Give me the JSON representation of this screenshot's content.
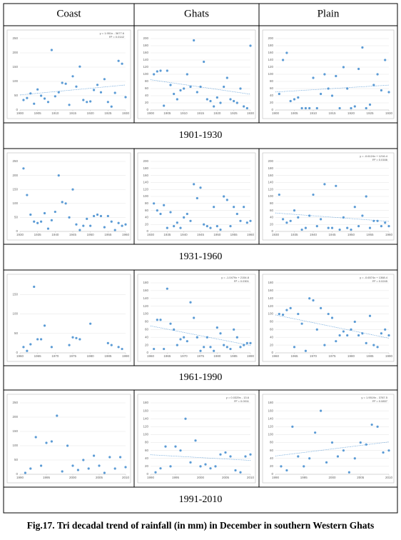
{
  "columns": [
    "Coast",
    "Ghats",
    "Plain"
  ],
  "periods": [
    "1901-1930",
    "1931-1960",
    "1961-1990",
    "1991-2010"
  ],
  "caption": "Fig.17. Tri decadal trend of rainfall (in mm) in December in southern Western Ghats",
  "chart_data": [
    {
      "type": "scatter",
      "color": "#5b9bd5",
      "trendline": true,
      "grid": true,
      "annotations": [
        "y = 1.951x - 3677.6",
        "R² = 0.0142"
      ],
      "x": [
        1901,
        1902,
        1903,
        1904,
        1905,
        1906,
        1907,
        1908,
        1909,
        1910,
        1911,
        1912,
        1913,
        1914,
        1915,
        1916,
        1917,
        1918,
        1919,
        1920,
        1921,
        1922,
        1923,
        1924,
        1925,
        1926,
        1927,
        1928,
        1929,
        1930
      ],
      "values": [
        35,
        42,
        58,
        22,
        72,
        50,
        40,
        28,
        210,
        48,
        62,
        95,
        92,
        18,
        118,
        82,
        152,
        35,
        28,
        30,
        70,
        88,
        62,
        108,
        28,
        12,
        60,
        172,
        162,
        45
      ],
      "xlim": [
        1900,
        1930
      ],
      "xticks": [
        1900,
        1905,
        1910,
        1915,
        1920,
        1925,
        1930
      ],
      "ylim": [
        0,
        250
      ],
      "yticks": [
        0,
        50,
        100,
        150,
        200,
        250
      ]
    },
    {
      "type": "scatter",
      "color": "#5b9bd5",
      "trendline": true,
      "grid": true,
      "x": [
        1901,
        1902,
        1903,
        1904,
        1905,
        1906,
        1907,
        1908,
        1909,
        1910,
        1911,
        1912,
        1913,
        1914,
        1915,
        1916,
        1917,
        1918,
        1919,
        1920,
        1921,
        1922,
        1923,
        1924,
        1925,
        1926,
        1927,
        1928,
        1929,
        1930
      ],
      "values": [
        100,
        108,
        110,
        12,
        110,
        70,
        45,
        30,
        55,
        60,
        100,
        65,
        195,
        50,
        65,
        135,
        30,
        25,
        10,
        35,
        20,
        65,
        90,
        30,
        25,
        20,
        60,
        10,
        5,
        180
      ],
      "xlim": [
        1900,
        1930
      ],
      "xticks": [
        1900,
        1905,
        1910,
        1915,
        1920,
        1925,
        1930
      ],
      "ylim": [
        0,
        200
      ],
      "yticks": [
        0,
        20,
        40,
        60,
        80,
        100,
        120,
        140,
        160,
        180,
        200
      ]
    },
    {
      "type": "scatter",
      "color": "#5b9bd5",
      "trendline": true,
      "grid": true,
      "x": [
        1901,
        1902,
        1903,
        1904,
        1905,
        1906,
        1907,
        1908,
        1909,
        1910,
        1911,
        1912,
        1913,
        1914,
        1915,
        1916,
        1917,
        1918,
        1919,
        1920,
        1921,
        1922,
        1923,
        1924,
        1925,
        1926,
        1927,
        1928,
        1929,
        1930
      ],
      "values": [
        45,
        140,
        160,
        25,
        30,
        35,
        5,
        5,
        5,
        90,
        5,
        45,
        100,
        60,
        40,
        95,
        5,
        120,
        60,
        5,
        10,
        115,
        175,
        5,
        15,
        70,
        100,
        55,
        140,
        50
      ],
      "xlim": [
        1900,
        1930
      ],
      "xticks": [
        1900,
        1905,
        1910,
        1915,
        1920,
        1925,
        1930
      ],
      "ylim": [
        0,
        200
      ],
      "yticks": [
        0,
        20,
        40,
        60,
        80,
        100,
        120,
        140,
        160,
        180,
        200
      ]
    },
    {
      "type": "scatter",
      "color": "#5b9bd5",
      "trendline": false,
      "grid": true,
      "x": [
        1931,
        1932,
        1933,
        1934,
        1935,
        1936,
        1937,
        1938,
        1939,
        1940,
        1941,
        1942,
        1943,
        1944,
        1945,
        1946,
        1947,
        1948,
        1949,
        1950,
        1951,
        1952,
        1953,
        1954,
        1955,
        1956,
        1957,
        1958,
        1959,
        1960
      ],
      "values": [
        225,
        130,
        60,
        35,
        30,
        35,
        65,
        10,
        40,
        70,
        200,
        105,
        100,
        50,
        150,
        25,
        5,
        20,
        45,
        20,
        55,
        60,
        55,
        15,
        55,
        35,
        5,
        30,
        20,
        25
      ],
      "xlim": [
        1930,
        1960
      ],
      "xticks": [
        1930,
        1935,
        1940,
        1945,
        1950,
        1955,
        1960
      ],
      "ylim": [
        0,
        250
      ],
      "yticks": [
        0,
        50,
        100,
        150,
        200,
        250
      ]
    },
    {
      "type": "scatter",
      "color": "#5b9bd5",
      "trendline": false,
      "grid": true,
      "x": [
        1931,
        1932,
        1933,
        1934,
        1935,
        1936,
        1937,
        1938,
        1939,
        1940,
        1941,
        1942,
        1943,
        1944,
        1945,
        1946,
        1947,
        1948,
        1949,
        1950,
        1951,
        1952,
        1953,
        1954,
        1955,
        1956,
        1957,
        1958,
        1959,
        1960
      ],
      "values": [
        80,
        60,
        50,
        75,
        10,
        55,
        15,
        25,
        10,
        40,
        50,
        30,
        135,
        95,
        125,
        20,
        15,
        10,
        70,
        15,
        5,
        100,
        90,
        15,
        70,
        50,
        30,
        70,
        25,
        30
      ],
      "xlim": [
        1930,
        1960
      ],
      "xticks": [
        1930,
        1935,
        1940,
        1945,
        1950,
        1955,
        1960
      ],
      "ylim": [
        0,
        200
      ],
      "yticks": [
        0,
        20,
        40,
        60,
        80,
        100,
        120,
        140,
        160,
        180,
        200
      ]
    },
    {
      "type": "scatter",
      "color": "#5b9bd5",
      "trendline": true,
      "grid": true,
      "annotations": [
        "y = -0.6124x + 1216.4",
        "R² = 0.0166"
      ],
      "x": [
        1931,
        1932,
        1933,
        1934,
        1935,
        1936,
        1937,
        1938,
        1939,
        1940,
        1941,
        1942,
        1943,
        1944,
        1945,
        1946,
        1947,
        1948,
        1949,
        1950,
        1951,
        1952,
        1953,
        1954,
        1955,
        1956,
        1957,
        1958,
        1959,
        1960
      ],
      "values": [
        105,
        35,
        25,
        30,
        60,
        40,
        5,
        10,
        45,
        105,
        15,
        35,
        135,
        10,
        10,
        130,
        5,
        40,
        10,
        5,
        70,
        15,
        45,
        100,
        10,
        30,
        30,
        15,
        25,
        15
      ],
      "xlim": [
        1930,
        1960
      ],
      "xticks": [
        1930,
        1935,
        1940,
        1945,
        1950,
        1955,
        1960
      ],
      "ylim": [
        0,
        200
      ],
      "yticks": [
        0,
        20,
        40,
        60,
        80,
        100,
        120,
        140,
        160,
        180,
        200
      ]
    },
    {
      "type": "scatter",
      "color": "#5b9bd5",
      "trendline": false,
      "grid": true,
      "x": [
        1961,
        1962,
        1963,
        1964,
        1965,
        1966,
        1967,
        1969,
        1974,
        1975,
        1976,
        1977,
        1980,
        1985,
        1986,
        1988,
        1989
      ],
      "values": [
        15,
        5,
        22,
        170,
        35,
        35,
        70,
        15,
        20,
        40,
        38,
        35,
        75,
        25,
        20,
        15,
        10
      ],
      "xlim": [
        1960,
        1990
      ],
      "xticks": [
        1960,
        1965,
        1970,
        1975,
        1980,
        1985,
        1990
      ],
      "ylim": [
        0,
        180
      ],
      "yticks": [
        0,
        50,
        100,
        150
      ]
    },
    {
      "type": "scatter",
      "color": "#5b9bd5",
      "trendline": true,
      "grid": true,
      "annotations": [
        "y = -1.0479x + 2154.8",
        "R² = 0.0301"
      ],
      "x": [
        1961,
        1962,
        1963,
        1964,
        1965,
        1966,
        1967,
        1968,
        1969,
        1970,
        1971,
        1972,
        1973,
        1974,
        1975,
        1976,
        1977,
        1978,
        1979,
        1980,
        1981,
        1982,
        1983,
        1984,
        1985,
        1986,
        1987,
        1988,
        1989,
        1990
      ],
      "values": [
        10,
        85,
        85,
        10,
        165,
        75,
        60,
        20,
        35,
        40,
        30,
        130,
        90,
        40,
        5,
        15,
        40,
        15,
        5,
        65,
        50,
        20,
        15,
        10,
        60,
        40,
        15,
        20,
        25,
        25
      ],
      "xlim": [
        1960,
        1990
      ],
      "xticks": [
        1960,
        1965,
        1970,
        1975,
        1980,
        1985,
        1990
      ],
      "ylim": [
        0,
        180
      ],
      "yticks": [
        0,
        20,
        40,
        60,
        80,
        100,
        120,
        140,
        160,
        180
      ]
    },
    {
      "type": "scatter",
      "color": "#5b9bd5",
      "trendline": true,
      "grid": true,
      "annotations": [
        "y = -0.6574x + 1368.4",
        "R² = 0.0245"
      ],
      "x": [
        1961,
        1962,
        1963,
        1964,
        1965,
        1966,
        1967,
        1968,
        1969,
        1970,
        1971,
        1972,
        1973,
        1974,
        1975,
        1976,
        1977,
        1978,
        1979,
        1980,
        1981,
        1982,
        1983,
        1984,
        1985,
        1986,
        1987,
        1988,
        1989,
        1990
      ],
      "values": [
        100,
        98,
        110,
        115,
        15,
        100,
        75,
        5,
        140,
        135,
        60,
        115,
        20,
        100,
        90,
        30,
        45,
        55,
        45,
        60,
        80,
        45,
        50,
        25,
        95,
        20,
        15,
        50,
        60,
        45
      ],
      "xlim": [
        1960,
        1990
      ],
      "xticks": [
        1960,
        1965,
        1970,
        1975,
        1980,
        1985,
        1990
      ],
      "ylim": [
        0,
        180
      ],
      "yticks": [
        0,
        20,
        40,
        60,
        80,
        100,
        120,
        140,
        160,
        180
      ]
    },
    {
      "type": "scatter",
      "color": "#5b9bd5",
      "trendline": false,
      "grid": true,
      "x": [
        1991,
        1992,
        1993,
        1994,
        1995,
        1996,
        1997,
        1998,
        1999,
        2000,
        2001,
        2002,
        2003,
        2004,
        2005,
        2006,
        2007,
        2008,
        2009,
        2010
      ],
      "values": [
        5,
        20,
        130,
        30,
        110,
        115,
        205,
        10,
        100,
        30,
        15,
        50,
        20,
        65,
        30,
        5,
        60,
        20,
        60,
        25
      ],
      "xlim": [
        1990,
        2010
      ],
      "xticks": [
        1990,
        1995,
        2000,
        2005,
        2010
      ],
      "ylim": [
        0,
        250
      ],
      "yticks": [
        0,
        50,
        100,
        150,
        200,
        250
      ]
    },
    {
      "type": "scatter",
      "color": "#5b9bd5",
      "trendline": true,
      "grid": true,
      "annotations": [
        "y = 0.0329x - 13.6",
        "R² = 0.0011"
      ],
      "x": [
        1991,
        1992,
        1993,
        1994,
        1995,
        1996,
        1997,
        1998,
        1999,
        2000,
        2001,
        2002,
        2003,
        2004,
        2005,
        2006,
        2007,
        2008,
        2009,
        2010
      ],
      "values": [
        5,
        15,
        70,
        20,
        70,
        60,
        140,
        30,
        85,
        20,
        25,
        15,
        20,
        50,
        55,
        45,
        10,
        5,
        45,
        50
      ],
      "xlim": [
        1990,
        2010
      ],
      "xticks": [
        1990,
        1995,
        2000,
        2005,
        2010
      ],
      "ylim": [
        0,
        180
      ],
      "yticks": [
        0,
        20,
        40,
        60,
        80,
        100,
        120,
        140,
        160,
        180
      ]
    },
    {
      "type": "scatter",
      "color": "#5b9bd5",
      "trendline": true,
      "grid": true,
      "annotations": [
        "y = 1.9519x - 3787.5",
        "R² = 0.0837"
      ],
      "x": [
        1991,
        1992,
        1993,
        1994,
        1995,
        1996,
        1997,
        1998,
        1999,
        2000,
        2001,
        2002,
        2003,
        2004,
        2005,
        2006,
        2007,
        2008,
        2009,
        2010
      ],
      "values": [
        20,
        10,
        120,
        45,
        20,
        40,
        105,
        160,
        30,
        80,
        45,
        60,
        5,
        40,
        80,
        75,
        125,
        120,
        55,
        60
      ],
      "xlim": [
        1990,
        2010
      ],
      "xticks": [
        1990,
        1995,
        2000,
        2005,
        2010
      ],
      "ylim": [
        0,
        180
      ],
      "yticks": [
        0,
        20,
        40,
        60,
        80,
        100,
        120,
        140,
        160,
        180
      ]
    }
  ]
}
